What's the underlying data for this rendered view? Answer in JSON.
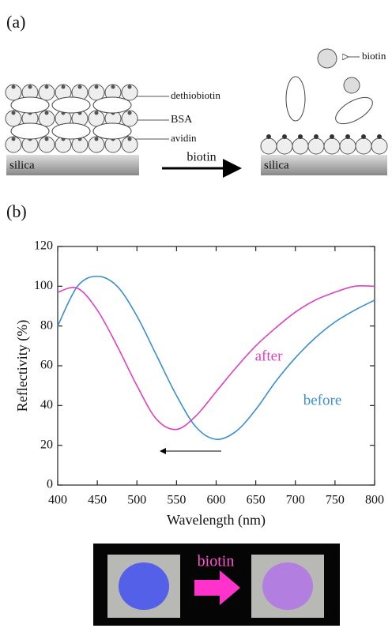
{
  "figure": {
    "panel_a_label": "(a)",
    "panel_b_label": "(b)",
    "diagram": {
      "dethiobiotin": "dethiobiotin",
      "bsa": "BSA",
      "avidin": "avidin",
      "substrate_left": "silica",
      "substrate_right": "silica",
      "arrow_label": "biotin",
      "released_label": "biotin"
    },
    "photo": {
      "label": "biotin"
    }
  },
  "chart_data": {
    "type": "line",
    "x_label": "Wavelength (nm)",
    "y_label": "Reflectivity (%)",
    "x": [
      400,
      425,
      450,
      475,
      500,
      525,
      550,
      575,
      600,
      625,
      650,
      675,
      700,
      725,
      750,
      775,
      800
    ],
    "series": [
      {
        "name": "before",
        "color": "#3a8fd0",
        "values": [
          80,
          100,
          105,
          100,
          85,
          65,
          45,
          29,
          23,
          27,
          38,
          52,
          64,
          74,
          82,
          88,
          93
        ]
      },
      {
        "name": "after",
        "color": "#e040c0",
        "values": [
          97,
          99,
          88,
          70,
          50,
          33,
          28,
          35,
          47,
          59,
          70,
          79,
          87,
          93,
          97,
          100,
          100
        ]
      }
    ],
    "xlim": [
      400,
      800
    ],
    "ylim": [
      0,
      120
    ],
    "xticks": [
      400,
      450,
      500,
      550,
      600,
      650,
      700,
      750,
      800
    ],
    "yticks": [
      0,
      20,
      40,
      60,
      80,
      100,
      120
    ]
  }
}
